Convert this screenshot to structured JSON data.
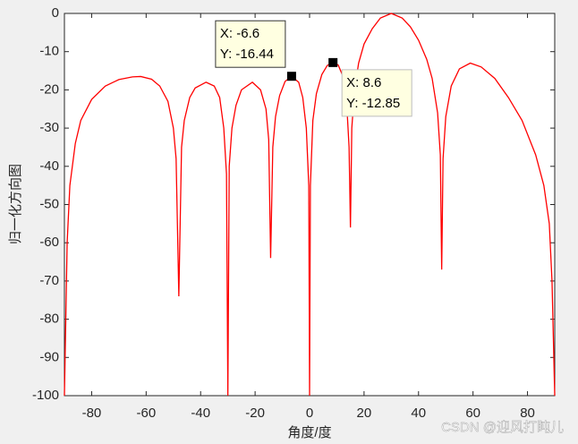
{
  "chart_data": {
    "type": "line",
    "xlabel": "角度/度",
    "ylabel": "归一化方向图",
    "xlim": [
      -90,
      90
    ],
    "ylim": [
      -100,
      0
    ],
    "xticks": [
      -80,
      -60,
      -40,
      -20,
      0,
      20,
      40,
      60,
      80
    ],
    "yticks": [
      0,
      -10,
      -20,
      -30,
      -40,
      -50,
      -60,
      -70,
      -80,
      -90,
      -100
    ],
    "series": [
      {
        "color": "#ff0000",
        "x": [
          -90,
          -89,
          -88,
          -86,
          -84,
          -80,
          -75,
          -70,
          -65,
          -62,
          -58,
          -55,
          -52,
          -50,
          -49,
          -48,
          -47,
          -46,
          -44,
          -42,
          -38,
          -35,
          -33,
          -31.5,
          -30.5,
          -30,
          -29.5,
          -28.5,
          -27,
          -25,
          -21,
          -18,
          -16,
          -15,
          -14.3,
          -13.5,
          -12.5,
          -11,
          -9,
          -6.6,
          -4,
          -2.5,
          -1.2,
          -0.3,
          0,
          0.3,
          1.2,
          2.5,
          4.5,
          6.5,
          8.6,
          10.5,
          12,
          13.5,
          14.5,
          15,
          15.5,
          16.5,
          18,
          20,
          23,
          26,
          30,
          34,
          37,
          40,
          43,
          45,
          47,
          48,
          48.5,
          49,
          50,
          52,
          55,
          59,
          63,
          68,
          73,
          78,
          83,
          86,
          88,
          89,
          90
        ],
        "values": [
          -100,
          -60,
          -45,
          -34,
          -28,
          -22.5,
          -19,
          -17.3,
          -16.6,
          -16.5,
          -17.2,
          -19,
          -23,
          -30,
          -38,
          -74,
          -35,
          -28,
          -22,
          -19.5,
          -18,
          -19,
          -22,
          -30,
          -42,
          -100,
          -40,
          -30,
          -24,
          -20,
          -18,
          -20,
          -25,
          -33,
          -64,
          -35,
          -27,
          -21.5,
          -17.8,
          -16.44,
          -18,
          -22,
          -30,
          -45,
          -100,
          -45,
          -28,
          -21,
          -16,
          -13.6,
          -12.85,
          -13.5,
          -16,
          -22,
          -35,
          -56,
          -30,
          -20,
          -13,
          -8,
          -4,
          -1.2,
          0,
          -1.2,
          -3.5,
          -7,
          -12,
          -17,
          -26,
          -37,
          -67,
          -38,
          -27,
          -19,
          -14.5,
          -13,
          -14,
          -17,
          -22,
          -28,
          -37,
          -45,
          -55,
          -70,
          -100
        ]
      }
    ],
    "annotations": [
      {
        "x": -6.6,
        "y": -16.44,
        "labels": [
          "X: -6.6",
          "Y: -16.44"
        ]
      },
      {
        "x": 8.6,
        "y": -12.85,
        "labels": [
          "X: 8.6",
          "Y: -12.85"
        ]
      }
    ],
    "watermark": "CSDN @迎风打盹儿"
  }
}
